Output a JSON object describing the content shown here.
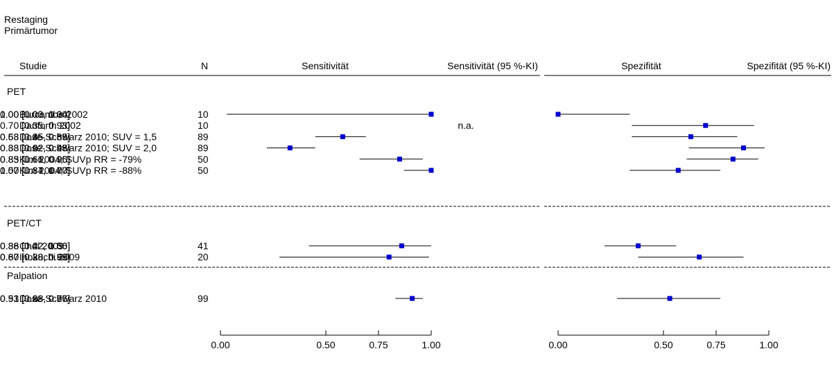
{
  "header": {
    "line1": "Restaging",
    "line2": "Primärtumor"
  },
  "columns": {
    "study": "Studie",
    "n": "N",
    "sens_plot": "Sensitivität",
    "sens_ci": "Sensitivität (95 %-KI)",
    "spec_plot": "Spezifität",
    "spec_ci": "Spezifität (95 %-KI)"
  },
  "chart_data": {
    "type": "forest",
    "xlim": [
      0,
      1
    ],
    "x_ticks": [
      "0.00",
      "0.50",
      "0.75",
      "1.00"
    ],
    "x_tick_values": [
      0,
      0.5,
      0.75,
      1.0
    ],
    "groups": [
      {
        "name": "PET",
        "studies": [
          {
            "study": "Burcombe 2002",
            "n": "10",
            "sens": {
              "est": 1.0,
              "lo": 0.03,
              "hi": 1.0,
              "label": "1.00 [0.03, 1.00]"
            },
            "spec": {
              "est": 0.0,
              "lo": 0.0,
              "hi": 0.34,
              "label": "0.00 [0.00, 0.34]"
            }
          },
          {
            "study": "Danforth 2002",
            "n": "10",
            "sens": {
              "est": null,
              "lo": null,
              "hi": null,
              "label": "n.a."
            },
            "spec": {
              "est": 0.7,
              "lo": 0.35,
              "hi": 0.93,
              "label": "0.70 [0.35, 0.93]"
            }
          },
          {
            "study": "Dose-Schwarz 2010; SUV = 1,5",
            "n": "89",
            "sens": {
              "est": 0.58,
              "lo": 0.45,
              "hi": 0.69,
              "label": "0.58 [0.45, 0.69]"
            },
            "spec": {
              "est": 0.63,
              "lo": 0.35,
              "hi": 0.85,
              "label": "0.63 [0.35, 0.85]"
            }
          },
          {
            "study": "Dose-Schwarz 2010; SUV = 2,0",
            "n": "89",
            "sens": {
              "est": 0.33,
              "lo": 0.22,
              "hi": 0.45,
              "label": "0.33 [0.22, 0.45]"
            },
            "spec": {
              "est": 0.88,
              "lo": 0.62,
              "hi": 0.98,
              "label": "0.88 [0.62, 0.98]"
            }
          },
          {
            "study": "Kim 2004; SUVp RR = -79%",
            "n": "50",
            "sens": {
              "est": 0.85,
              "lo": 0.66,
              "hi": 0.96,
              "label": "0.85 [0.66, 0.96]"
            },
            "spec": {
              "est": 0.83,
              "lo": 0.61,
              "hi": 0.95,
              "label": "0.83 [0.61, 0.95]"
            }
          },
          {
            "study": "Kim 2004; SUVp RR = -88%",
            "n": "50",
            "sens": {
              "est": 1.0,
              "lo": 0.87,
              "hi": 1.0,
              "label": "1.00 [0.87, 1.00]"
            },
            "spec": {
              "est": 0.57,
              "lo": 0.34,
              "hi": 0.77,
              "label": "0.57 [0.34, 0.77]"
            }
          }
        ]
      },
      {
        "name": "PET/CT",
        "studies": [
          {
            "study": "Choi 2009",
            "n": "41",
            "sens": {
              "est": 0.86,
              "lo": 0.42,
              "hi": 1.0,
              "label": "0.86 [0.42, 1.00]"
            },
            "spec": {
              "est": 0.38,
              "lo": 0.22,
              "hi": 0.56,
              "label": "0.38 [0.22, 0.56]"
            }
          },
          {
            "study": "Inokuchi 2009",
            "n": "20",
            "sens": {
              "est": 0.8,
              "lo": 0.28,
              "hi": 0.99,
              "label": "0.80 [0.28, 0.99]"
            },
            "spec": {
              "est": 0.67,
              "lo": 0.38,
              "hi": 0.88,
              "label": "0.67 [0.38, 0.88]"
            }
          }
        ]
      },
      {
        "name": "Palpation",
        "studies": [
          {
            "study": "Dose-Schwarz 2010",
            "n": "99",
            "sens": {
              "est": 0.91,
              "lo": 0.83,
              "hi": 0.96,
              "label": "0.91 [0.83, 0.96]"
            },
            "spec": {
              "est": 0.53,
              "lo": 0.28,
              "hi": 0.77,
              "label": "0.53 [0.28, 0.77]"
            }
          }
        ]
      }
    ],
    "point_color": "#0000cc",
    "line_color": "#000000"
  }
}
